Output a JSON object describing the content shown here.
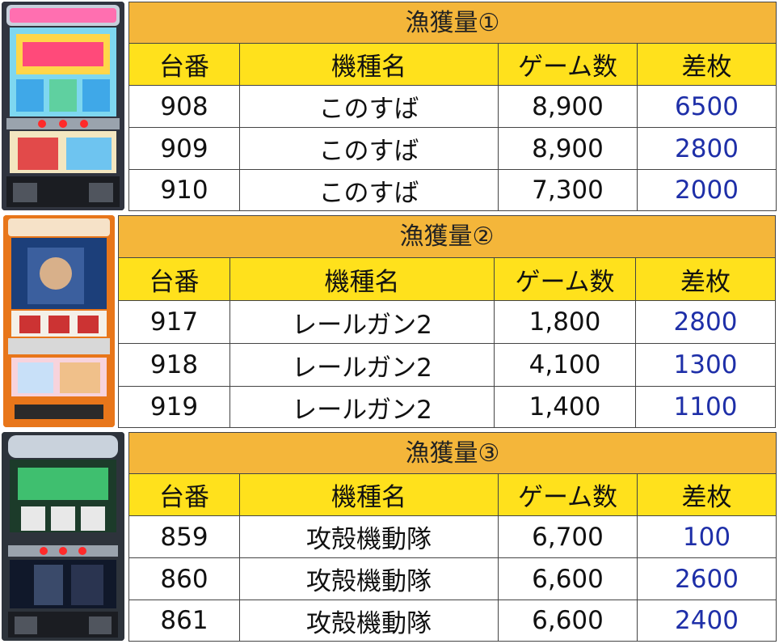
{
  "colors": {
    "title_bg": "#f4b63a",
    "header_bg": "#ffe11c",
    "diff_text": "#1e2fa8",
    "border": "#444444"
  },
  "sections": [
    {
      "title": "漁獲量①",
      "machine_image": "slot-machine-konosuba",
      "headers": [
        "台番",
        "機種名",
        "ゲーム数",
        "差枚"
      ],
      "rows": [
        {
          "number": "908",
          "name": "このすば",
          "games": "8,900",
          "diff": "6500"
        },
        {
          "number": "909",
          "name": "このすば",
          "games": "8,900",
          "diff": "2800"
        },
        {
          "number": "910",
          "name": "このすば",
          "games": "7,300",
          "diff": "2000"
        }
      ]
    },
    {
      "title": "漁獲量②",
      "machine_image": "slot-machine-railgun2",
      "headers": [
        "台番",
        "機種名",
        "ゲーム数",
        "差枚"
      ],
      "rows": [
        {
          "number": "917",
          "name": "レールガン2",
          "games": "1,800",
          "diff": "2800"
        },
        {
          "number": "918",
          "name": "レールガン2",
          "games": "4,100",
          "diff": "1300"
        },
        {
          "number": "919",
          "name": "レールガン2",
          "games": "1,400",
          "diff": "1100"
        }
      ]
    },
    {
      "title": "漁獲量③",
      "machine_image": "slot-machine-ghost-in-the-shell",
      "headers": [
        "台番",
        "機種名",
        "ゲーム数",
        "差枚"
      ],
      "rows": [
        {
          "number": "859",
          "name": "攻殻機動隊",
          "games": "6,700",
          "diff": "100"
        },
        {
          "number": "860",
          "name": "攻殻機動隊",
          "games": "6,600",
          "diff": "2600"
        },
        {
          "number": "861",
          "name": "攻殻機動隊",
          "games": "6,600",
          "diff": "2400"
        }
      ]
    }
  ]
}
